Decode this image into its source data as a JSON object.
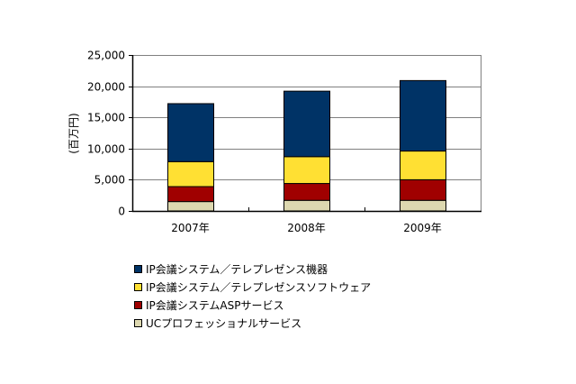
{
  "chart_data": {
    "type": "bar",
    "stacked": true,
    "title": "",
    "xlabel": "",
    "ylabel": "(百万円)",
    "ylim": [
      0,
      25000
    ],
    "yticks": [
      0,
      5000,
      10000,
      15000,
      20000,
      25000
    ],
    "ytick_labels": [
      "0",
      "5,000",
      "10,000",
      "15,000",
      "20,000",
      "25,000"
    ],
    "categories": [
      "2007年",
      "2008年",
      "2009年"
    ],
    "grid": true,
    "legend_position": "bottom",
    "series": [
      {
        "name": "UCプロフェッショナルサービス",
        "color": "#DDD8B0",
        "values": [
          1500,
          1700,
          1700
        ]
      },
      {
        "name": "IP会議システムASPサービス",
        "color": "#A00000",
        "values": [
          2400,
          2700,
          3300
        ]
      },
      {
        "name": "IP会議システム／テレプレゼンスソフトウェア",
        "color": "#FFE033",
        "values": [
          4000,
          4300,
          4600
        ]
      },
      {
        "name": "IP会議システム／テレプレゼンス機器",
        "color": "#003366",
        "values": [
          9300,
          10500,
          11300
        ]
      }
    ],
    "totals": [
      17200,
      19200,
      20900
    ]
  },
  "legend": [
    {
      "label": "IP会議システム／テレプレゼンス機器",
      "color": "#003366"
    },
    {
      "label": "IP会議システム／テレプレゼンスソフトウェア",
      "color": "#FFE033"
    },
    {
      "label": "IP会議システムASPサービス",
      "color": "#A00000"
    },
    {
      "label": "UCプロフェッショナルサービス",
      "color": "#DDD8B0"
    }
  ]
}
